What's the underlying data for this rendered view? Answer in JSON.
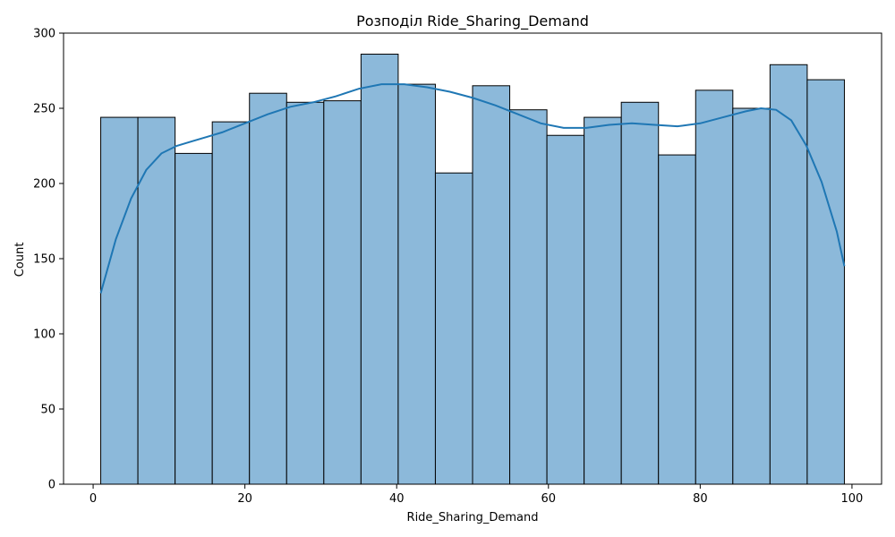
{
  "chart_data": {
    "type": "bar",
    "title": "Розподіл Ride_Sharing_Demand",
    "xlabel": "Ride_Sharing_Demand",
    "ylabel": "Count",
    "xlim": [
      -3.9,
      103.9
    ],
    "ylim": [
      0,
      300
    ],
    "x_ticks": [
      0,
      20,
      40,
      60,
      80,
      100
    ],
    "y_ticks": [
      0,
      50,
      100,
      150,
      200,
      250,
      300
    ],
    "grid": false,
    "bins": [
      {
        "x0": 1.0,
        "x1": 5.9,
        "count": 244
      },
      {
        "x0": 5.9,
        "x1": 10.8,
        "count": 244
      },
      {
        "x0": 10.8,
        "x1": 15.7,
        "count": 220
      },
      {
        "x0": 15.7,
        "x1": 20.6,
        "count": 241
      },
      {
        "x0": 20.6,
        "x1": 25.5,
        "count": 260
      },
      {
        "x0": 25.5,
        "x1": 30.4,
        "count": 254
      },
      {
        "x0": 30.4,
        "x1": 35.3,
        "count": 255
      },
      {
        "x0": 35.3,
        "x1": 40.2,
        "count": 286
      },
      {
        "x0": 40.2,
        "x1": 45.1,
        "count": 266
      },
      {
        "x0": 45.1,
        "x1": 50.0,
        "count": 207
      },
      {
        "x0": 50.0,
        "x1": 54.9,
        "count": 265
      },
      {
        "x0": 54.9,
        "x1": 59.8,
        "count": 249
      },
      {
        "x0": 59.8,
        "x1": 64.7,
        "count": 232
      },
      {
        "x0": 64.7,
        "x1": 69.6,
        "count": 244
      },
      {
        "x0": 69.6,
        "x1": 74.5,
        "count": 254
      },
      {
        "x0": 74.5,
        "x1": 79.4,
        "count": 219
      },
      {
        "x0": 79.4,
        "x1": 84.3,
        "count": 262
      },
      {
        "x0": 84.3,
        "x1": 89.2,
        "count": 250
      },
      {
        "x0": 89.2,
        "x1": 94.1,
        "count": 279
      },
      {
        "x0": 94.1,
        "x1": 99.0,
        "count": 269
      }
    ],
    "kde": [
      [
        1,
        127
      ],
      [
        3,
        163
      ],
      [
        5,
        190
      ],
      [
        7,
        209
      ],
      [
        9,
        220
      ],
      [
        11,
        225
      ],
      [
        13,
        228
      ],
      [
        15,
        231
      ],
      [
        17,
        234
      ],
      [
        20,
        240
      ],
      [
        23,
        246
      ],
      [
        26,
        251
      ],
      [
        29,
        254
      ],
      [
        32,
        258
      ],
      [
        35,
        263
      ],
      [
        38,
        266
      ],
      [
        41,
        266
      ],
      [
        44,
        264
      ],
      [
        47,
        261
      ],
      [
        50,
        257
      ],
      [
        53,
        252
      ],
      [
        56,
        246
      ],
      [
        59,
        240
      ],
      [
        62,
        237
      ],
      [
        65,
        237
      ],
      [
        68,
        239
      ],
      [
        71,
        240
      ],
      [
        74,
        239
      ],
      [
        77,
        238
      ],
      [
        80,
        240
      ],
      [
        83,
        244
      ],
      [
        86,
        248
      ],
      [
        88,
        250
      ],
      [
        90,
        249
      ],
      [
        92,
        242
      ],
      [
        94,
        225
      ],
      [
        96,
        201
      ],
      [
        98,
        168
      ],
      [
        99,
        145
      ]
    ],
    "colors": {
      "bar_fill": "#8cb9da",
      "bar_edge": "#000000",
      "kde_line": "#1f77b4",
      "axis": "#000000"
    }
  }
}
